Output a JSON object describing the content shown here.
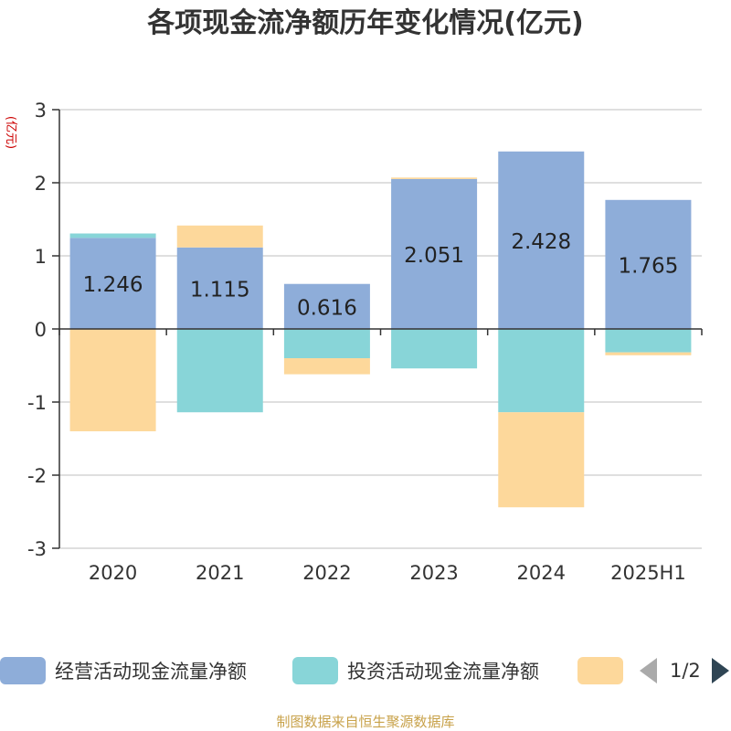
{
  "title": "各项现金流净额历年变化情况(亿元)",
  "source_note": "制图数据来自恒生聚源数据库",
  "pager": {
    "text": "1/2"
  },
  "chart_data": {
    "type": "bar",
    "stacked": true,
    "title": "各项现金流净额历年变化情况(亿元)",
    "ylabel": "(亿元)",
    "xlabel": "",
    "ylim": [
      -3,
      3
    ],
    "yticks": [
      3,
      2,
      1,
      0,
      -1,
      -2,
      -3
    ],
    "categories": [
      "2020",
      "2021",
      "2022",
      "2023",
      "2024",
      "2025H1"
    ],
    "grid": true,
    "legend_position": "bottom",
    "series": [
      {
        "name": "经营活动现金流量净额",
        "color": "#8eadd9",
        "values": [
          1.246,
          1.115,
          0.616,
          2.051,
          2.428,
          1.765
        ],
        "show_labels": true
      },
      {
        "name": "投资活动现金流量净额",
        "color": "#88d5d8",
        "values": [
          0.06,
          -1.14,
          -0.4,
          -0.54,
          -1.14,
          -0.32
        ],
        "show_labels": false
      },
      {
        "name": "",
        "color": "#fdd89b",
        "values": [
          -1.4,
          0.3,
          -0.22,
          0.02,
          -1.3,
          -0.04
        ],
        "show_labels": false
      }
    ]
  }
}
